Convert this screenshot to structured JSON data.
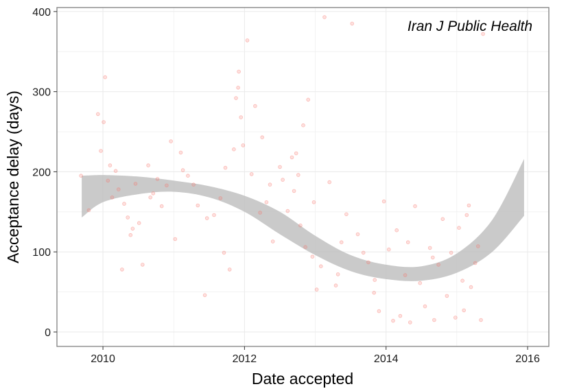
{
  "chart_data": {
    "type": "scatter",
    "xlabel": "Date accepted",
    "ylabel": "Acceptance delay (days)",
    "annotation": "Iran J Public Health",
    "xlim": [
      2009.35,
      2016.3
    ],
    "ylim": [
      -18,
      405
    ],
    "x_ticks": [
      2010,
      2012,
      2014,
      2016
    ],
    "y_ticks": [
      0,
      100,
      200,
      300,
      400
    ],
    "grid": true,
    "colors": {
      "points": "#f8766d",
      "band": "#bdbdbd",
      "grid": "#ebebeb",
      "border": "#7f7f7f"
    },
    "smooth_band": {
      "x": [
        2009.7,
        2010.0,
        2010.5,
        2011.0,
        2011.5,
        2012.0,
        2012.5,
        2013.0,
        2013.5,
        2014.0,
        2014.5,
        2015.0,
        2015.5,
        2015.95
      ],
      "upper": [
        195,
        196,
        194,
        189,
        182,
        170,
        150,
        120,
        96,
        84,
        82,
        98,
        140,
        216
      ],
      "lower": [
        143,
        162,
        172,
        175,
        168,
        150,
        122,
        96,
        76,
        66,
        64,
        74,
        100,
        145
      ]
    },
    "series": [
      {
        "x": [
          2009.69,
          2009.8,
          2009.93,
          2009.97,
          2010.01,
          2010.03,
          2010.07,
          2010.1,
          2010.13,
          2010.18,
          2010.22,
          2010.27,
          2010.3,
          2010.35,
          2010.42,
          2010.46,
          2010.51,
          2010.56,
          2010.64,
          2010.71,
          2010.77,
          2010.83,
          2010.9,
          2010.96,
          2011.02,
          2011.1,
          2011.2,
          2011.28,
          2011.34,
          2011.44,
          2011.57,
          2011.66,
          2011.73,
          2011.79,
          2011.85,
          2011.88,
          2011.91,
          2011.92,
          2011.95,
          2011.98,
          2012.04,
          2012.1,
          2012.15,
          2012.22,
          2012.31,
          2012.4,
          2012.5,
          2012.54,
          2012.61,
          2012.7,
          2012.73,
          2012.76,
          2012.79,
          2012.83,
          2012.86,
          2012.9,
          2012.96,
          2013.02,
          2013.08,
          2013.13,
          2013.2,
          2013.29,
          2013.37,
          2013.44,
          2013.52,
          2013.6,
          2013.68,
          2013.75,
          2013.83,
          2013.9,
          2013.97,
          2014.04,
          2014.1,
          2014.15,
          2014.2,
          2014.27,
          2014.34,
          2014.41,
          2014.48,
          2014.55,
          2014.62,
          2014.68,
          2014.74,
          2014.8,
          2014.86,
          2014.92,
          2014.98,
          2015.03,
          2015.08,
          2015.14,
          2015.2,
          2015.26,
          2015.3,
          2015.34,
          2015.37,
          2011.47,
          2010.67,
          2012.25,
          2013.32,
          2014.66,
          2015.1,
          2011.13,
          2012.98,
          2010.39,
          2012.67,
          2013.84,
          2014.31,
          2015.17,
          2011.71,
          2012.36
        ],
        "y": [
          195,
          152,
          272,
          226,
          262,
          318,
          189,
          208,
          168,
          201,
          178,
          78,
          160,
          143,
          129,
          185,
          136,
          84,
          208,
          173,
          191,
          157,
          183,
          238,
          116,
          224,
          195,
          184,
          158,
          46,
          146,
          167,
          205,
          78,
          228,
          292,
          305,
          325,
          268,
          233,
          364,
          197,
          282,
          149,
          162,
          113,
          206,
          190,
          151,
          176,
          223,
          196,
          133,
          258,
          106,
          290,
          94,
          53,
          82,
          393,
          187,
          58,
          112,
          147,
          385,
          122,
          99,
          87,
          49,
          26,
          163,
          103,
          14,
          127,
          20,
          71,
          12,
          157,
          61,
          32,
          105,
          15,
          84,
          141,
          45,
          99,
          18,
          130,
          64,
          146,
          56,
          86,
          107,
          15,
          372,
          142,
          168,
          243,
          72,
          93,
          27,
          202,
          162,
          121,
          218,
          65,
          112,
          158,
          99,
          184
        ]
      }
    ]
  }
}
